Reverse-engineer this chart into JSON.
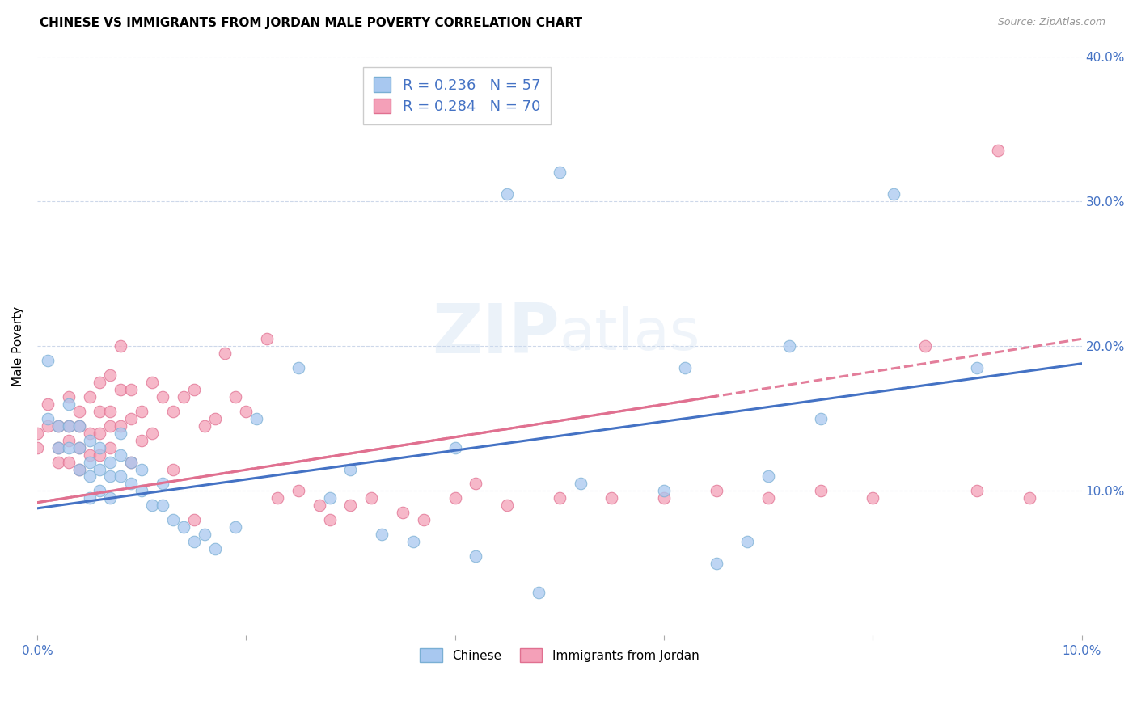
{
  "title": "CHINESE VS IMMIGRANTS FROM JORDAN MALE POVERTY CORRELATION CHART",
  "source": "Source: ZipAtlas.com",
  "ylabel": "Male Poverty",
  "xlim": [
    0.0,
    0.1
  ],
  "ylim": [
    0.0,
    0.4
  ],
  "xticks": [
    0.0,
    0.02,
    0.04,
    0.06,
    0.08,
    0.1
  ],
  "yticks": [
    0.0,
    0.1,
    0.2,
    0.3,
    0.4
  ],
  "xtick_labels": [
    "0.0%",
    "",
    "",
    "",
    "",
    "10.0%"
  ],
  "ytick_labels_right": [
    "",
    "10.0%",
    "20.0%",
    "30.0%",
    "40.0%"
  ],
  "chinese_color": "#a8c8f0",
  "jordan_color": "#f4a0b8",
  "chinese_edge": "#7aafd4",
  "jordan_edge": "#e07090",
  "line_chinese_color": "#4472c4",
  "line_jordan_color": "#e07090",
  "label_color": "#4472c4",
  "R_chinese": 0.236,
  "N_chinese": 57,
  "R_jordan": 0.284,
  "N_jordan": 70,
  "line_chinese_x0": 0.0,
  "line_chinese_y0": 0.088,
  "line_chinese_x1": 0.1,
  "line_chinese_y1": 0.188,
  "line_jordan_x0": 0.0,
  "line_jordan_y0": 0.092,
  "line_jordan_x1": 0.1,
  "line_jordan_y1": 0.205,
  "chinese_x": [
    0.001,
    0.001,
    0.002,
    0.002,
    0.003,
    0.003,
    0.003,
    0.004,
    0.004,
    0.004,
    0.005,
    0.005,
    0.005,
    0.005,
    0.006,
    0.006,
    0.006,
    0.007,
    0.007,
    0.007,
    0.008,
    0.008,
    0.008,
    0.009,
    0.009,
    0.01,
    0.01,
    0.011,
    0.012,
    0.012,
    0.013,
    0.014,
    0.015,
    0.016,
    0.017,
    0.019,
    0.021,
    0.025,
    0.028,
    0.03,
    0.033,
    0.036,
    0.04,
    0.042,
    0.045,
    0.048,
    0.05,
    0.052,
    0.06,
    0.062,
    0.065,
    0.068,
    0.07,
    0.072,
    0.075,
    0.082,
    0.09
  ],
  "chinese_y": [
    0.19,
    0.15,
    0.13,
    0.145,
    0.13,
    0.145,
    0.16,
    0.13,
    0.145,
    0.115,
    0.12,
    0.135,
    0.11,
    0.095,
    0.115,
    0.1,
    0.13,
    0.11,
    0.095,
    0.12,
    0.11,
    0.125,
    0.14,
    0.105,
    0.12,
    0.1,
    0.115,
    0.09,
    0.105,
    0.09,
    0.08,
    0.075,
    0.065,
    0.07,
    0.06,
    0.075,
    0.15,
    0.185,
    0.095,
    0.115,
    0.07,
    0.065,
    0.13,
    0.055,
    0.305,
    0.03,
    0.32,
    0.105,
    0.1,
    0.185,
    0.05,
    0.065,
    0.11,
    0.2,
    0.15,
    0.305,
    0.185
  ],
  "jordan_x": [
    0.0,
    0.0,
    0.001,
    0.001,
    0.002,
    0.002,
    0.002,
    0.003,
    0.003,
    0.003,
    0.003,
    0.004,
    0.004,
    0.004,
    0.004,
    0.005,
    0.005,
    0.005,
    0.006,
    0.006,
    0.006,
    0.006,
    0.007,
    0.007,
    0.007,
    0.007,
    0.008,
    0.008,
    0.008,
    0.009,
    0.009,
    0.009,
    0.01,
    0.01,
    0.011,
    0.011,
    0.012,
    0.013,
    0.013,
    0.014,
    0.015,
    0.015,
    0.016,
    0.017,
    0.018,
    0.019,
    0.02,
    0.022,
    0.023,
    0.025,
    0.027,
    0.028,
    0.03,
    0.032,
    0.035,
    0.037,
    0.04,
    0.042,
    0.045,
    0.05,
    0.055,
    0.06,
    0.065,
    0.07,
    0.075,
    0.08,
    0.085,
    0.09,
    0.092,
    0.095
  ],
  "jordan_y": [
    0.14,
    0.13,
    0.145,
    0.16,
    0.13,
    0.145,
    0.12,
    0.135,
    0.12,
    0.145,
    0.165,
    0.145,
    0.13,
    0.115,
    0.155,
    0.14,
    0.125,
    0.165,
    0.14,
    0.155,
    0.125,
    0.175,
    0.145,
    0.155,
    0.13,
    0.18,
    0.145,
    0.17,
    0.2,
    0.15,
    0.17,
    0.12,
    0.155,
    0.135,
    0.175,
    0.14,
    0.165,
    0.155,
    0.115,
    0.165,
    0.08,
    0.17,
    0.145,
    0.15,
    0.195,
    0.165,
    0.155,
    0.205,
    0.095,
    0.1,
    0.09,
    0.08,
    0.09,
    0.095,
    0.085,
    0.08,
    0.095,
    0.105,
    0.09,
    0.095,
    0.095,
    0.095,
    0.1,
    0.095,
    0.1,
    0.095,
    0.2,
    0.1,
    0.335,
    0.095
  ]
}
